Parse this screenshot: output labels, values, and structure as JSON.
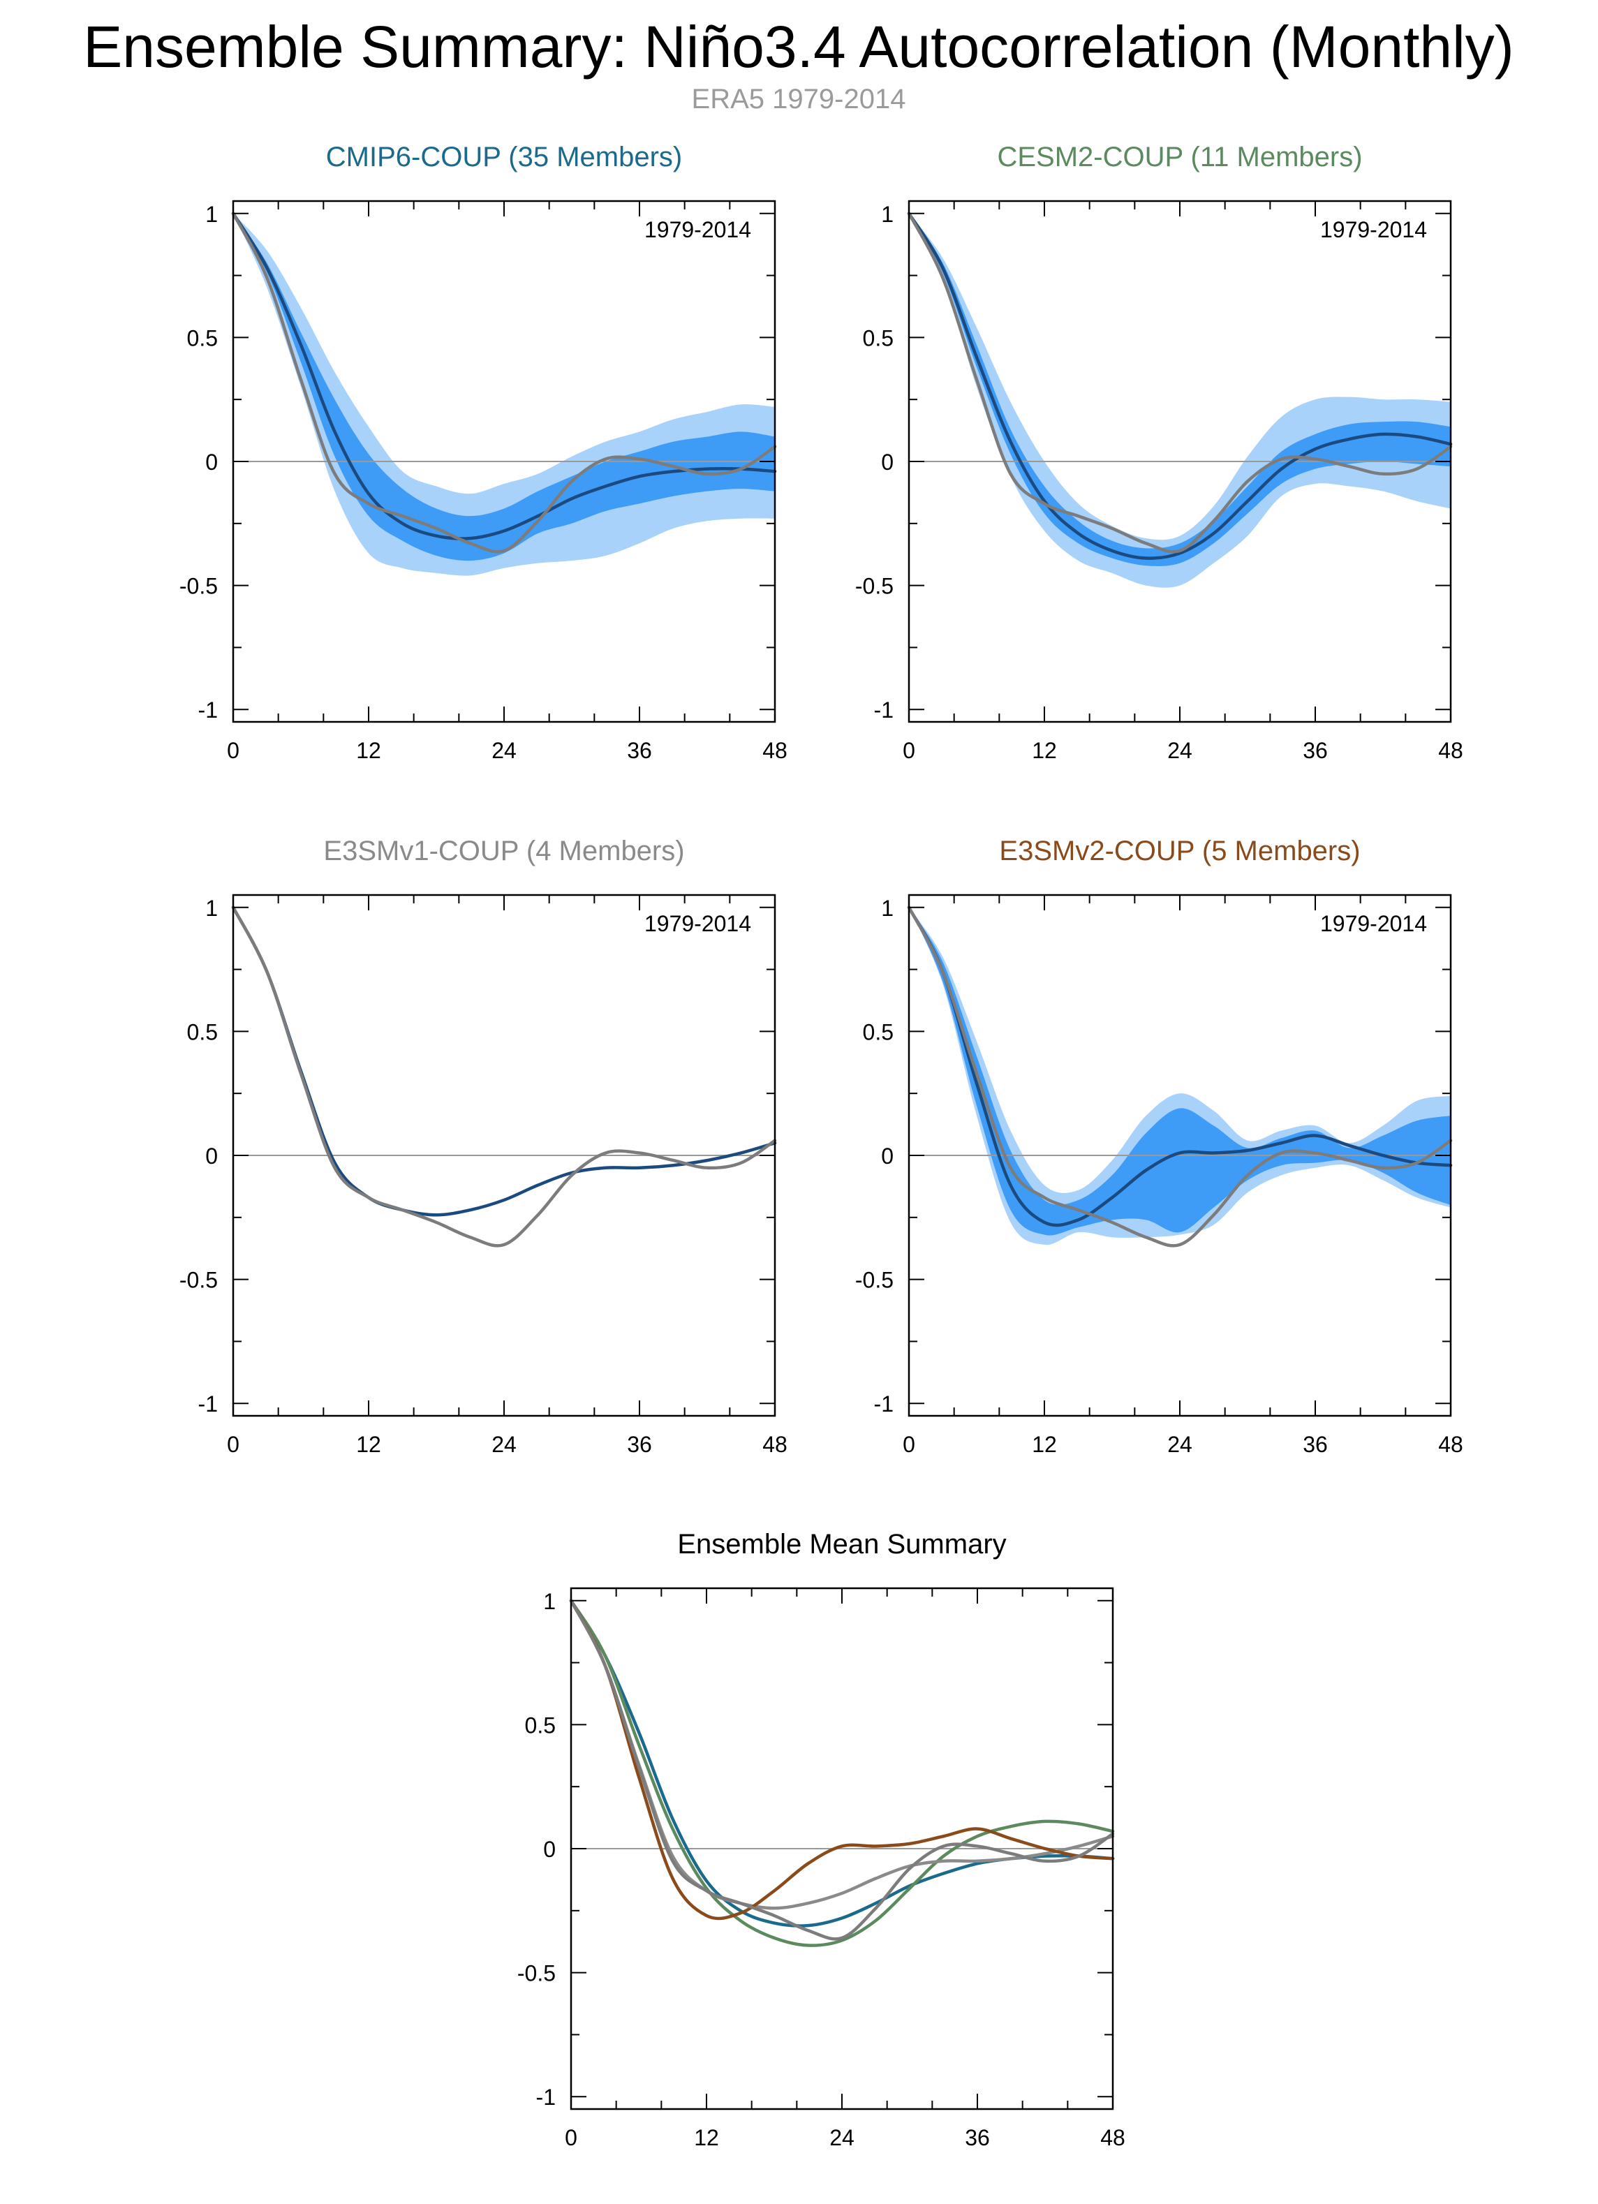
{
  "figure": {
    "title": "Ensemble Summary: Niño3.4 Autocorrelation (Monthly)",
    "subtitle": "ERA5 1979-2014",
    "subtitle_color": "#9a9a9a",
    "title_color": "#000000"
  },
  "colors": {
    "band_outer": "#a9d2fb",
    "band_inner": "#3f9cf6",
    "ensemble_mean": "#1a4a80",
    "observation": "#7c7c7c",
    "zero_line": "#999999",
    "axis": "#000000",
    "tick_text": "#000000"
  },
  "chart_data": [
    {
      "id": "cmip6",
      "type": "line",
      "title": "CMIP6-COUP (35 Members)",
      "title_color": "#1a6a8e",
      "annotation": "1979-2014",
      "xlim": [
        0,
        48
      ],
      "ylim": [
        -1.05,
        1.05
      ],
      "xticks": [
        0,
        12,
        24,
        36,
        48
      ],
      "yticks": [
        -1,
        -0.5,
        0,
        0.5,
        1
      ],
      "xtick_labels": [
        "0",
        "12",
        "24",
        "36",
        "48"
      ],
      "ytick_labels": [
        "-1",
        "-0.5",
        "0",
        "0.5",
        "1"
      ],
      "x": [
        0,
        3,
        6,
        9,
        12,
        15,
        18,
        21,
        24,
        27,
        30,
        33,
        36,
        39,
        42,
        45,
        48
      ],
      "outer_band": {
        "upper": [
          1.0,
          0.85,
          0.62,
          0.36,
          0.14,
          -0.04,
          -0.1,
          -0.13,
          -0.09,
          -0.05,
          0.02,
          0.08,
          0.12,
          0.17,
          0.2,
          0.23,
          0.22
        ],
        "lower": [
          1.0,
          0.7,
          0.3,
          -0.12,
          -0.37,
          -0.43,
          -0.45,
          -0.46,
          -0.43,
          -0.41,
          -0.4,
          -0.38,
          -0.33,
          -0.27,
          -0.24,
          -0.23,
          -0.23
        ]
      },
      "inner_band": {
        "upper": [
          1.0,
          0.8,
          0.52,
          0.25,
          0.03,
          -0.11,
          -0.19,
          -0.22,
          -0.19,
          -0.12,
          -0.06,
          0.0,
          0.04,
          0.08,
          0.1,
          0.12,
          0.1
        ],
        "lower": [
          1.0,
          0.76,
          0.4,
          0.02,
          -0.22,
          -0.32,
          -0.38,
          -0.4,
          -0.37,
          -0.29,
          -0.25,
          -0.2,
          -0.17,
          -0.14,
          -0.12,
          -0.11,
          -0.12
        ]
      },
      "series": [
        {
          "name": "Ensemble mean",
          "values": [
            1.0,
            0.78,
            0.47,
            0.12,
            -0.13,
            -0.25,
            -0.3,
            -0.31,
            -0.28,
            -0.22,
            -0.15,
            -0.1,
            -0.06,
            -0.04,
            -0.03,
            -0.03,
            -0.04
          ]
        },
        {
          "name": "ERA5",
          "values": [
            1.0,
            0.74,
            0.33,
            -0.05,
            -0.17,
            -0.22,
            -0.27,
            -0.33,
            -0.36,
            -0.24,
            -0.08,
            0.01,
            0.01,
            -0.02,
            -0.05,
            -0.03,
            0.06
          ]
        }
      ]
    },
    {
      "id": "cesm2",
      "type": "line",
      "title": "CESM2-COUP (11 Members)",
      "title_color": "#5a8a5e",
      "annotation": "1979-2014",
      "xlim": [
        0,
        48
      ],
      "ylim": [
        -1.05,
        1.05
      ],
      "xticks": [
        0,
        12,
        24,
        36,
        48
      ],
      "yticks": [
        -1,
        -0.5,
        0,
        0.5,
        1
      ],
      "xtick_labels": [
        "0",
        "12",
        "24",
        "36",
        "48"
      ],
      "ytick_labels": [
        "-1",
        "-0.5",
        "0",
        "0.5",
        "1"
      ],
      "x": [
        0,
        3,
        6,
        9,
        12,
        15,
        18,
        21,
        24,
        27,
        30,
        33,
        36,
        39,
        42,
        45,
        48
      ],
      "outer_band": {
        "upper": [
          1.0,
          0.82,
          0.54,
          0.24,
          0.0,
          -0.17,
          -0.26,
          -0.31,
          -0.3,
          -0.18,
          0.02,
          0.18,
          0.25,
          0.26,
          0.25,
          0.25,
          0.24
        ],
        "lower": [
          1.0,
          0.74,
          0.3,
          -0.06,
          -0.28,
          -0.4,
          -0.45,
          -0.5,
          -0.5,
          -0.41,
          -0.3,
          -0.14,
          -0.09,
          -0.1,
          -0.12,
          -0.16,
          -0.19
        ]
      },
      "inner_band": {
        "upper": [
          1.0,
          0.8,
          0.47,
          0.13,
          -0.1,
          -0.24,
          -0.32,
          -0.35,
          -0.33,
          -0.24,
          -0.1,
          0.04,
          0.11,
          0.15,
          0.16,
          0.16,
          0.14
        ],
        "lower": [
          1.0,
          0.76,
          0.38,
          0.03,
          -0.21,
          -0.33,
          -0.39,
          -0.42,
          -0.41,
          -0.33,
          -0.21,
          -0.09,
          -0.03,
          -0.01,
          0.0,
          -0.01,
          -0.02
        ]
      },
      "series": [
        {
          "name": "Ensemble mean",
          "values": [
            1.0,
            0.78,
            0.42,
            0.08,
            -0.16,
            -0.29,
            -0.36,
            -0.39,
            -0.37,
            -0.29,
            -0.16,
            -0.03,
            0.05,
            0.09,
            0.11,
            0.1,
            0.07
          ]
        },
        {
          "name": "ERA5",
          "values": [
            1.0,
            0.74,
            0.33,
            -0.05,
            -0.17,
            -0.22,
            -0.27,
            -0.33,
            -0.36,
            -0.24,
            -0.08,
            0.01,
            0.01,
            -0.02,
            -0.05,
            -0.03,
            0.06
          ]
        }
      ]
    },
    {
      "id": "e3smv1",
      "type": "line",
      "title": "E3SMv1-COUP (4 Members)",
      "title_color": "#8a8a8a",
      "annotation": "1979-2014",
      "xlim": [
        0,
        48
      ],
      "ylim": [
        -1.05,
        1.05
      ],
      "xticks": [
        0,
        12,
        24,
        36,
        48
      ],
      "yticks": [
        -1,
        -0.5,
        0,
        0.5,
        1
      ],
      "xtick_labels": [
        "0",
        "12",
        "24",
        "36",
        "48"
      ],
      "ytick_labels": [
        "-1",
        "-0.5",
        "0",
        "0.5",
        "1"
      ],
      "x": [
        0,
        3,
        6,
        9,
        12,
        15,
        18,
        21,
        24,
        27,
        30,
        33,
        36,
        39,
        42,
        45,
        48
      ],
      "outer_band": null,
      "inner_band": null,
      "series": [
        {
          "name": "Ensemble mean",
          "values": [
            1.0,
            0.74,
            0.34,
            -0.03,
            -0.17,
            -0.22,
            -0.24,
            -0.22,
            -0.18,
            -0.12,
            -0.07,
            -0.05,
            -0.05,
            -0.04,
            -0.02,
            0.01,
            0.05
          ]
        },
        {
          "name": "ERA5",
          "values": [
            1.0,
            0.74,
            0.33,
            -0.05,
            -0.17,
            -0.22,
            -0.27,
            -0.33,
            -0.36,
            -0.24,
            -0.08,
            0.01,
            0.01,
            -0.02,
            -0.05,
            -0.03,
            0.06
          ]
        }
      ]
    },
    {
      "id": "e3smv2",
      "type": "line",
      "title": "E3SMv2-COUP (5 Members)",
      "title_color": "#8a4a1a",
      "annotation": "1979-2014",
      "xlim": [
        0,
        48
      ],
      "ylim": [
        -1.05,
        1.05
      ],
      "xticks": [
        0,
        12,
        24,
        36,
        48
      ],
      "yticks": [
        -1,
        -0.5,
        0,
        0.5,
        1
      ],
      "xtick_labels": [
        "0",
        "12",
        "24",
        "36",
        "48"
      ],
      "ytick_labels": [
        "-1",
        "-0.5",
        "0",
        "0.5",
        "1"
      ],
      "x": [
        0,
        3,
        6,
        9,
        12,
        15,
        18,
        21,
        24,
        27,
        30,
        33,
        36,
        39,
        42,
        45,
        48
      ],
      "outer_band": {
        "upper": [
          1.0,
          0.8,
          0.46,
          0.1,
          -0.12,
          -0.14,
          -0.02,
          0.16,
          0.25,
          0.18,
          0.06,
          0.1,
          0.12,
          0.05,
          0.12,
          0.22,
          0.24
        ],
        "lower": [
          1.0,
          0.69,
          0.16,
          -0.27,
          -0.36,
          -0.31,
          -0.33,
          -0.33,
          -0.32,
          -0.28,
          -0.15,
          -0.08,
          -0.05,
          -0.04,
          -0.1,
          -0.17,
          -0.21
        ]
      },
      "inner_band": {
        "upper": [
          1.0,
          0.78,
          0.4,
          0.02,
          -0.18,
          -0.18,
          -0.08,
          0.09,
          0.19,
          0.12,
          0.03,
          0.07,
          0.1,
          0.03,
          0.08,
          0.14,
          0.16
        ],
        "lower": [
          1.0,
          0.7,
          0.2,
          -0.22,
          -0.32,
          -0.29,
          -0.26,
          -0.26,
          -0.31,
          -0.21,
          -0.1,
          -0.04,
          -0.03,
          -0.02,
          -0.07,
          -0.15,
          -0.2
        ]
      },
      "series": [
        {
          "name": "Ensemble mean",
          "values": [
            1.0,
            0.74,
            0.29,
            -0.12,
            -0.27,
            -0.26,
            -0.17,
            -0.06,
            0.01,
            0.01,
            0.02,
            0.05,
            0.08,
            0.04,
            0.0,
            -0.03,
            -0.04
          ]
        },
        {
          "name": "ERA5",
          "values": [
            1.0,
            0.74,
            0.33,
            -0.05,
            -0.17,
            -0.22,
            -0.27,
            -0.33,
            -0.36,
            -0.24,
            -0.08,
            0.01,
            0.01,
            -0.02,
            -0.05,
            -0.03,
            0.06
          ]
        }
      ]
    },
    {
      "id": "summary",
      "type": "line",
      "title": "Ensemble Mean Summary",
      "title_color": "#000000",
      "annotation": "",
      "xlim": [
        0,
        48
      ],
      "ylim": [
        -1.05,
        1.05
      ],
      "xticks": [
        0,
        12,
        24,
        36,
        48
      ],
      "yticks": [
        -1,
        -0.5,
        0,
        0.5,
        1
      ],
      "xtick_labels": [
        "0",
        "12",
        "24",
        "36",
        "48"
      ],
      "ytick_labels": [
        "-1",
        "-0.5",
        "0",
        "0.5",
        "1"
      ],
      "x": [
        0,
        3,
        6,
        9,
        12,
        15,
        18,
        21,
        24,
        27,
        30,
        33,
        36,
        39,
        42,
        45,
        48
      ],
      "outer_band": null,
      "inner_band": null,
      "series": [
        {
          "name": "CMIP6-COUP",
          "color": "#1a6a8e",
          "values": [
            1.0,
            0.78,
            0.47,
            0.12,
            -0.13,
            -0.25,
            -0.3,
            -0.31,
            -0.28,
            -0.22,
            -0.15,
            -0.1,
            -0.06,
            -0.04,
            -0.03,
            -0.03,
            -0.04
          ]
        },
        {
          "name": "CESM2-COUP",
          "color": "#5a8a5e",
          "values": [
            1.0,
            0.78,
            0.42,
            0.08,
            -0.16,
            -0.29,
            -0.36,
            -0.39,
            -0.37,
            -0.29,
            -0.16,
            -0.03,
            0.05,
            0.09,
            0.11,
            0.1,
            0.07
          ]
        },
        {
          "name": "E3SMv1-COUP",
          "color": "#8a8a8a",
          "values": [
            1.0,
            0.74,
            0.34,
            -0.03,
            -0.17,
            -0.22,
            -0.24,
            -0.22,
            -0.18,
            -0.12,
            -0.07,
            -0.05,
            -0.05,
            -0.04,
            -0.02,
            0.01,
            0.05
          ]
        },
        {
          "name": "E3SMv2-COUP",
          "color": "#8a4a1a",
          "values": [
            1.0,
            0.74,
            0.29,
            -0.12,
            -0.27,
            -0.26,
            -0.17,
            -0.06,
            0.01,
            0.01,
            0.02,
            0.05,
            0.08,
            0.04,
            0.0,
            -0.03,
            -0.04
          ]
        },
        {
          "name": "ERA5",
          "color": "#7c7c7c",
          "values": [
            1.0,
            0.74,
            0.33,
            -0.05,
            -0.17,
            -0.22,
            -0.27,
            -0.33,
            -0.36,
            -0.24,
            -0.08,
            0.01,
            0.01,
            -0.02,
            -0.05,
            -0.03,
            0.06
          ]
        }
      ]
    }
  ]
}
